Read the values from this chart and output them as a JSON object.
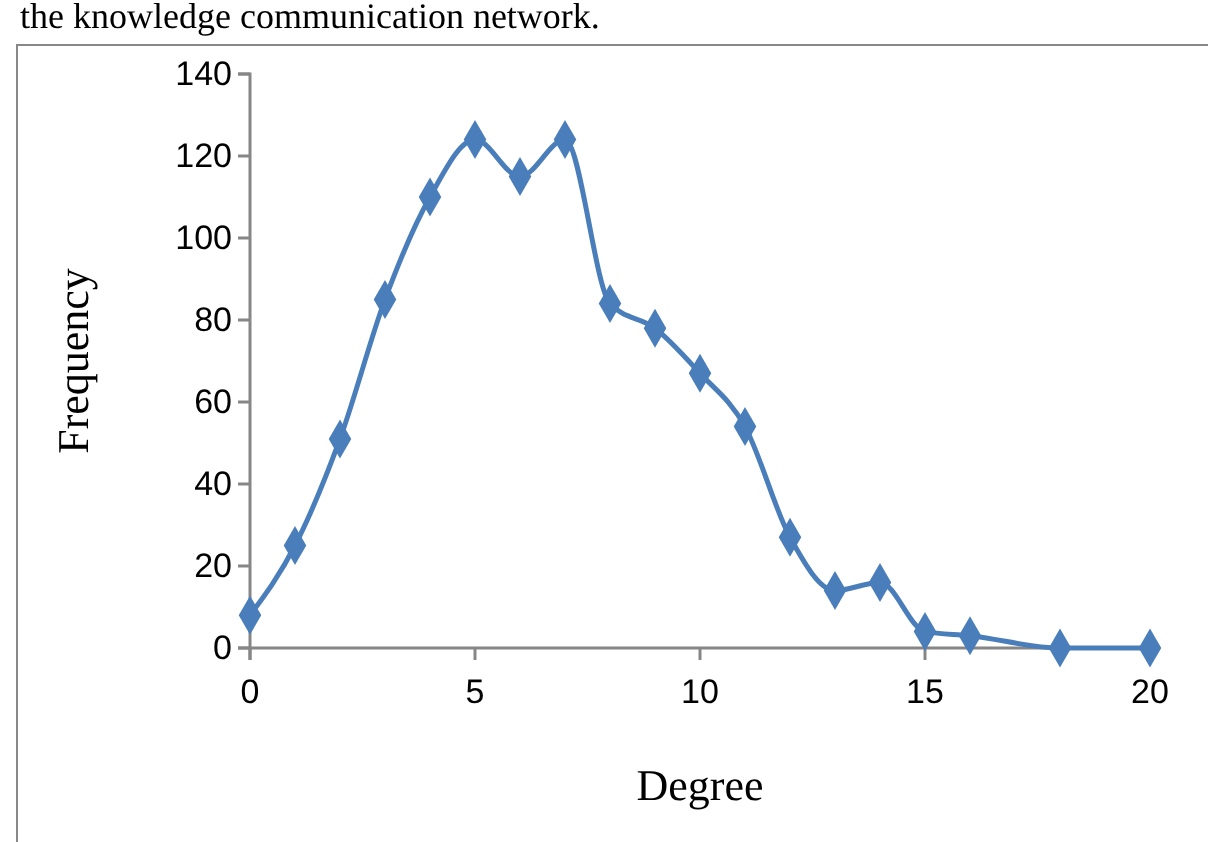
{
  "chart_data": {
    "type": "line",
    "xlabel": "Degree",
    "ylabel": "Frequency",
    "annotations": [
      "the knowledge communication network."
    ],
    "x": [
      0,
      1,
      2,
      3,
      4,
      5,
      6,
      7,
      8,
      9,
      10,
      11,
      12,
      13,
      14,
      15,
      16,
      18,
      20
    ],
    "series": [
      {
        "color": "#4a7ebb",
        "values": [
          8,
          25,
          51,
          85,
          110,
          124,
          115,
          124,
          84,
          78,
          67,
          54,
          27,
          14,
          16,
          4,
          3,
          0,
          0
        ]
      }
    ],
    "xlim": [
      0,
      20
    ],
    "xticks": [
      0,
      5,
      10,
      15,
      20
    ],
    "ylim": [
      0,
      140
    ],
    "yticks": [
      0,
      20,
      40,
      60,
      80,
      100,
      120,
      140
    ],
    "grid": false,
    "marker": "diamond",
    "line_style": "solid"
  }
}
